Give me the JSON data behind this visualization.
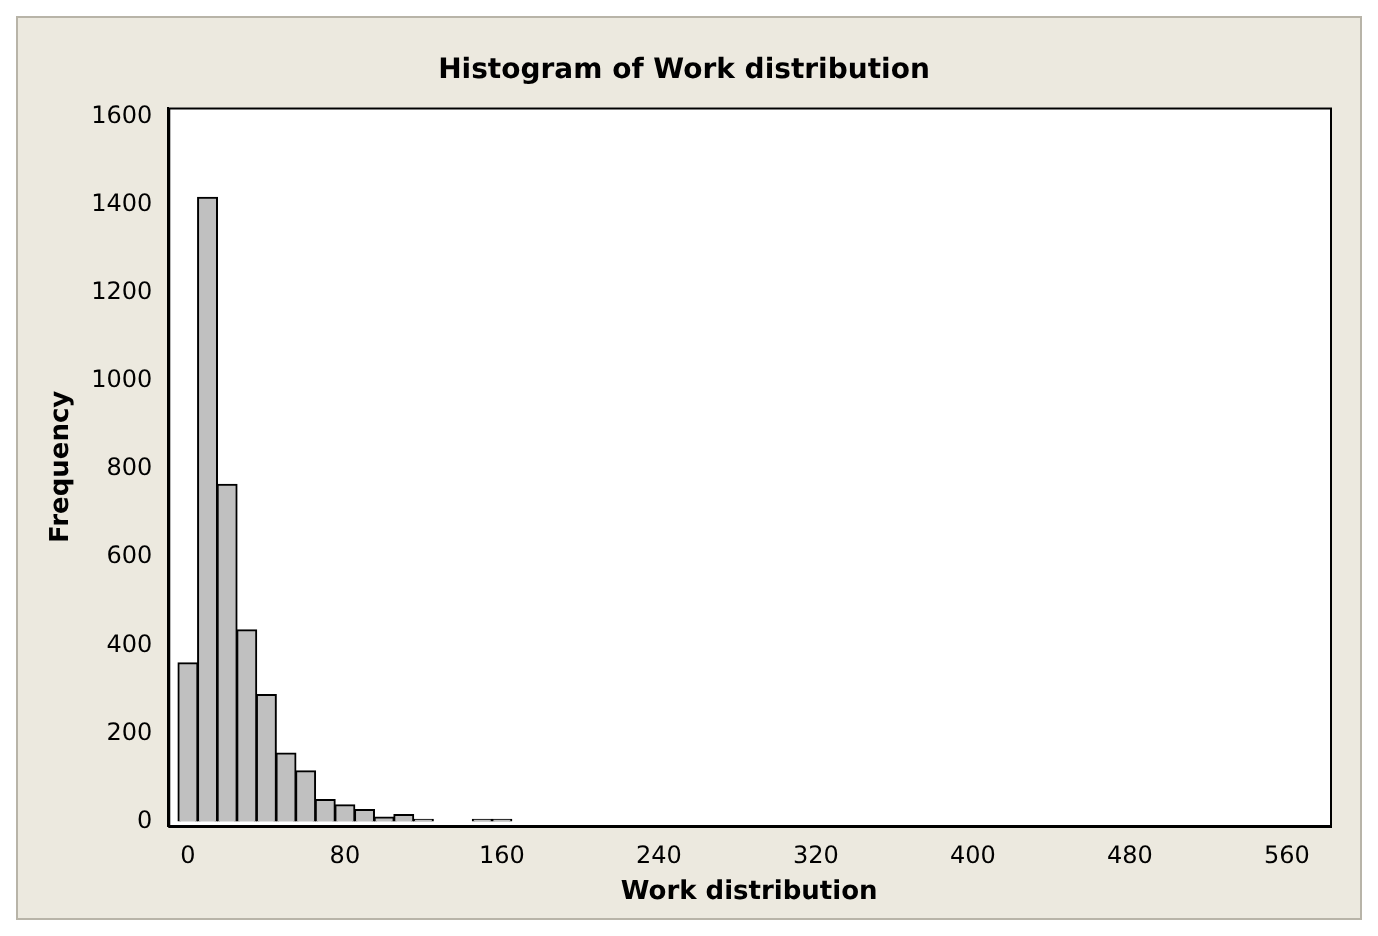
{
  "chart_data": {
    "type": "histogram",
    "title": "Histogram of Work distribution",
    "xlabel": "Work distribution",
    "ylabel": "Frequency",
    "bins": [
      -5,
      5,
      15,
      25,
      35,
      45,
      55,
      65,
      75,
      85,
      95,
      105,
      115,
      125,
      135,
      145,
      155,
      165
    ],
    "values": [
      360,
      1416,
      765,
      435,
      288,
      155,
      115,
      50,
      38,
      27,
      10,
      16,
      5,
      0,
      0,
      5,
      5
    ],
    "color": "#c0c0c0",
    "xlim": [
      -10,
      582
    ],
    "xticks": [
      0,
      80,
      160,
      240,
      320,
      400,
      480,
      560
    ],
    "ylim": [
      -10,
      1620
    ],
    "yticks": [
      0,
      200,
      400,
      600,
      800,
      1000,
      1200,
      1400,
      1600
    ],
    "grid": false,
    "legend": false
  }
}
